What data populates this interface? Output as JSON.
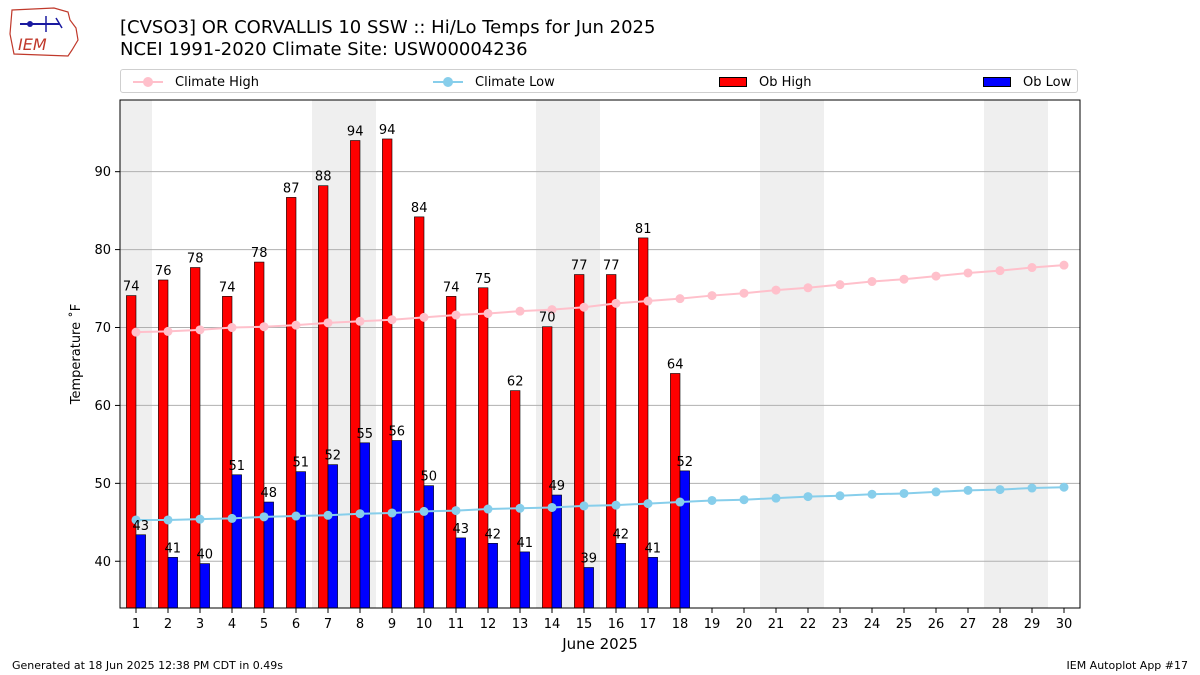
{
  "title_line1": "[CVSO3] OR CORVALLIS 10 SSW :: Hi/Lo Temps for Jun 2025",
  "title_line2": "NCEI 1991-2020 Climate Site: USW00004236",
  "logo_text": "IEM",
  "footer_left": "Generated at 18 Jun 2025 12:38 PM CDT in 0.49s",
  "footer_right": "IEM Autoplot App #17",
  "colors": {
    "ob_high": "#ff0000",
    "ob_low": "#0000ff",
    "climate_high": "#ffc0cb",
    "climate_low": "#87ceeb",
    "weekend_shade": "#efefef",
    "grid": "#b0b0b0"
  },
  "legend": [
    {
      "label": "Climate High",
      "kind": "line",
      "color": "#ffc0cb"
    },
    {
      "label": "Climate Low",
      "kind": "line",
      "color": "#87ceeb"
    },
    {
      "label": "Ob High",
      "kind": "box",
      "color": "#ff0000"
    },
    {
      "label": "Ob Low",
      "kind": "box",
      "color": "#0000ff"
    }
  ],
  "chart_data": {
    "type": "bar",
    "title": "[CVSO3] OR CORVALLIS 10 SSW :: Hi/Lo Temps for Jun 2025",
    "subtitle": "NCEI 1991-2020 Climate Site: USW00004236",
    "xlabel": "June 2025",
    "ylabel": "Temperature ˚F",
    "xlim": [
      0.5,
      30.5
    ],
    "ylim": [
      34,
      99.2
    ],
    "yticks": [
      40,
      50,
      60,
      70,
      80,
      90
    ],
    "grid": true,
    "legend_position": "top",
    "days": [
      1,
      2,
      3,
      4,
      5,
      6,
      7,
      8,
      9,
      10,
      11,
      12,
      13,
      14,
      15,
      16,
      17,
      18,
      19,
      20,
      21,
      22,
      23,
      24,
      25,
      26,
      27,
      28,
      29,
      30
    ],
    "weekend_days": [
      1,
      7,
      8,
      14,
      15,
      21,
      22,
      28,
      29
    ],
    "series": [
      {
        "name": "Ob High",
        "kind": "bar",
        "values": [
          74.1,
          76.1,
          77.7,
          74.0,
          78.4,
          86.7,
          88.2,
          94.0,
          94.2,
          84.2,
          74.0,
          75.1,
          61.9,
          70.1,
          76.8,
          76.8,
          81.5,
          64.1
        ]
      },
      {
        "name": "Ob Low",
        "kind": "bar",
        "values": [
          43.4,
          40.5,
          39.7,
          51.1,
          47.6,
          51.5,
          52.4,
          55.2,
          55.5,
          49.7,
          43.0,
          42.3,
          41.2,
          48.5,
          39.2,
          42.3,
          40.5,
          51.6
        ]
      },
      {
        "name": "Climate High",
        "kind": "line",
        "values": [
          69.4,
          69.5,
          69.7,
          70.0,
          70.1,
          70.3,
          70.6,
          70.8,
          71.0,
          71.3,
          71.6,
          71.8,
          72.1,
          72.3,
          72.6,
          73.1,
          73.4,
          73.7,
          74.1,
          74.4,
          74.8,
          75.1,
          75.5,
          75.9,
          76.2,
          76.6,
          77.0,
          77.3,
          77.7,
          78.0
        ]
      },
      {
        "name": "Climate Low",
        "kind": "line",
        "values": [
          45.3,
          45.3,
          45.4,
          45.5,
          45.7,
          45.8,
          45.9,
          46.1,
          46.2,
          46.4,
          46.5,
          46.7,
          46.8,
          46.9,
          47.1,
          47.2,
          47.4,
          47.6,
          47.8,
          47.9,
          48.1,
          48.3,
          48.4,
          48.6,
          48.7,
          48.9,
          49.1,
          49.2,
          49.4,
          49.5
        ]
      }
    ],
    "bar_labels_high": [
      "74",
      "76",
      "78",
      "74",
      "78",
      "87",
      "88",
      "94",
      "94",
      "84",
      "74",
      "75",
      "62",
      "70",
      "77",
      "77",
      "81",
      "64"
    ],
    "bar_labels_low": [
      "43",
      "41",
      "40",
      "51",
      "48",
      "51",
      "52",
      "55",
      "56",
      "50",
      "43",
      "42",
      "41",
      "49",
      "39",
      "42",
      "41",
      "52"
    ]
  }
}
